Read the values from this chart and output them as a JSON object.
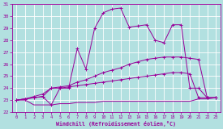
{
  "xlabel": "Windchill (Refroidissement éolien,°C)",
  "ylabel": "",
  "xlim": [
    -0.5,
    23.5
  ],
  "ylim": [
    22,
    31
  ],
  "xticks": [
    0,
    1,
    2,
    3,
    4,
    5,
    6,
    7,
    8,
    9,
    10,
    11,
    12,
    13,
    14,
    15,
    16,
    17,
    18,
    19,
    20,
    21,
    22,
    23
  ],
  "yticks": [
    22,
    23,
    24,
    25,
    26,
    27,
    28,
    29,
    30,
    31
  ],
  "bg_color": "#b2e0e0",
  "line_color": "#990099",
  "grid_color": "#ffffff",
  "lines": [
    {
      "x": [
        0,
        1,
        2,
        3,
        4,
        5,
        6,
        7,
        8,
        9,
        10,
        11,
        12,
        13,
        14,
        15,
        16,
        17,
        18,
        19,
        20,
        21,
        22,
        23
      ],
      "y": [
        23.0,
        23.0,
        22.6,
        22.6,
        22.6,
        22.7,
        22.7,
        22.8,
        22.8,
        22.8,
        22.9,
        22.9,
        22.9,
        22.9,
        22.9,
        22.9,
        22.9,
        22.9,
        22.9,
        22.9,
        22.9,
        23.1,
        23.1,
        23.2
      ],
      "marker": null
    },
    {
      "x": [
        0,
        1,
        2,
        3,
        4,
        5,
        6,
        7,
        8,
        9,
        10,
        11,
        12,
        13,
        14,
        15,
        16,
        17,
        18,
        19,
        20,
        21,
        22,
        23
      ],
      "y": [
        23.0,
        23.1,
        23.2,
        23.3,
        24.0,
        24.0,
        24.1,
        24.2,
        24.3,
        24.4,
        24.5,
        24.6,
        24.7,
        24.8,
        24.9,
        25.0,
        25.1,
        25.2,
        25.3,
        25.3,
        25.2,
        23.2,
        23.2,
        23.2
      ],
      "marker": "+"
    },
    {
      "x": [
        0,
        1,
        2,
        3,
        4,
        5,
        6,
        7,
        8,
        9,
        10,
        11,
        12,
        13,
        14,
        15,
        16,
        17,
        18,
        19,
        20,
        21,
        22,
        23
      ],
      "y": [
        23.0,
        23.1,
        23.3,
        23.5,
        24.0,
        24.1,
        24.2,
        24.5,
        24.7,
        25.0,
        25.3,
        25.5,
        25.7,
        26.0,
        26.2,
        26.4,
        26.5,
        26.6,
        26.6,
        26.6,
        26.5,
        26.4,
        23.2,
        23.2
      ],
      "marker": "+"
    },
    {
      "x": [
        0,
        1,
        2,
        3,
        4,
        5,
        6,
        7,
        8,
        9,
        10,
        11,
        12,
        13,
        14,
        15,
        16,
        17,
        18,
        19,
        20,
        21,
        22,
        23
      ],
      "y": [
        23.0,
        23.1,
        23.2,
        23.3,
        22.6,
        24.0,
        24.0,
        27.3,
        25.6,
        29.0,
        30.3,
        30.6,
        30.7,
        29.1,
        29.2,
        29.3,
        28.0,
        27.8,
        29.3,
        29.3,
        24.0,
        24.0,
        23.2,
        23.2
      ],
      "marker": "+"
    }
  ]
}
